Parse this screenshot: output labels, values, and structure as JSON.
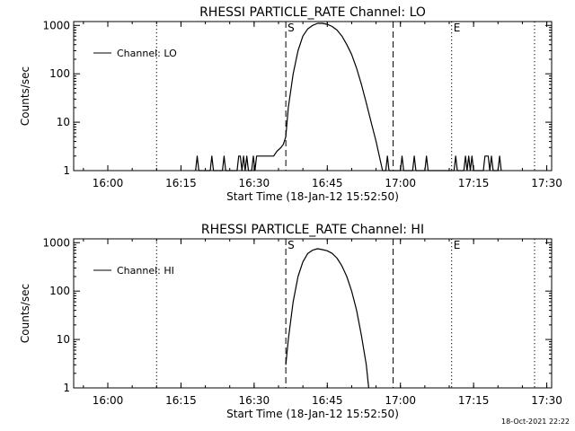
{
  "chart_data": [
    {
      "type": "line",
      "title": "RHESSI PARTICLE_RATE Channel: LO",
      "xlabel": "Start Time (18-Jan-12 15:52:50)",
      "ylabel": "Counts/sec",
      "yscale": "log",
      "ylim": [
        1,
        1200
      ],
      "xlim": [
        "15:53",
        "17:31"
      ],
      "xticks": [
        "16:00",
        "16:15",
        "16:30",
        "16:45",
        "17:00",
        "17:15",
        "17:30"
      ],
      "yticks": [
        "1",
        "10",
        "100",
        "1000"
      ],
      "legend": {
        "label": "Channel: LO",
        "position": "top-left"
      },
      "markers": [
        {
          "label": "S",
          "time": "16:36:30",
          "style": "dashed"
        },
        {
          "label": "",
          "time": "16:58:30",
          "style": "dashed"
        },
        {
          "label": "",
          "time": "16:10:00",
          "style": "dotted"
        },
        {
          "label": "E",
          "time": "17:10:30",
          "style": "dotted"
        },
        {
          "label": "",
          "time": "17:27:30",
          "style": "dotted"
        }
      ],
      "series": [
        {
          "name": "Channel: LO",
          "points": [
            [
              "16:18:00",
              1
            ],
            [
              "16:18:20",
              2
            ],
            [
              "16:18:40",
              1
            ],
            [
              "16:21:00",
              1
            ],
            [
              "16:21:20",
              2
            ],
            [
              "16:21:40",
              1
            ],
            [
              "16:23:30",
              1
            ],
            [
              "16:23:50",
              2
            ],
            [
              "16:24:10",
              1
            ],
            [
              "16:26:30",
              1
            ],
            [
              "16:26:50",
              2
            ],
            [
              "16:27:10",
              2
            ],
            [
              "16:27:30",
              1
            ],
            [
              "16:27:50",
              2
            ],
            [
              "16:28:10",
              1
            ],
            [
              "16:28:30",
              2
            ],
            [
              "16:28:50",
              1
            ],
            [
              "16:29:30",
              1
            ],
            [
              "16:29:50",
              2
            ],
            [
              "16:30:10",
              1
            ],
            [
              "16:30:30",
              2
            ],
            [
              "16:34:00",
              2
            ],
            [
              "16:34:40",
              2.5
            ],
            [
              "16:35:30",
              3
            ],
            [
              "16:36:00",
              3.5
            ],
            [
              "16:36:30",
              5
            ],
            [
              "16:37:00",
              20
            ],
            [
              "16:38:00",
              100
            ],
            [
              "16:39:00",
              300
            ],
            [
              "16:40:00",
              600
            ],
            [
              "16:41:00",
              850
            ],
            [
              "16:42:00",
              1000
            ],
            [
              "16:43:00",
              1100
            ],
            [
              "16:44:00",
              1100
            ],
            [
              "16:45:00",
              1050
            ],
            [
              "16:46:00",
              950
            ],
            [
              "16:47:00",
              800
            ],
            [
              "16:48:00",
              600
            ],
            [
              "16:49:00",
              400
            ],
            [
              "16:50:00",
              250
            ],
            [
              "16:51:00",
              130
            ],
            [
              "16:52:00",
              60
            ],
            [
              "16:53:00",
              25
            ],
            [
              "16:54:00",
              10
            ],
            [
              "16:55:00",
              4
            ],
            [
              "16:55:40",
              2
            ],
            [
              "16:56:20",
              1
            ],
            [
              "16:57:00",
              1
            ],
            [
              "16:57:20",
              2
            ],
            [
              "16:57:40",
              1
            ],
            [
              "17:00:00",
              1
            ],
            [
              "17:00:20",
              2
            ],
            [
              "17:00:40",
              1
            ],
            [
              "17:02:30",
              1
            ],
            [
              "17:02:50",
              2
            ],
            [
              "17:03:10",
              1
            ],
            [
              "17:05:00",
              1
            ],
            [
              "17:05:20",
              2
            ],
            [
              "17:05:40",
              1
            ],
            [
              "17:11:00",
              1
            ],
            [
              "17:11:20",
              2
            ],
            [
              "17:11:40",
              1
            ],
            [
              "17:13:00",
              1
            ],
            [
              "17:13:20",
              2
            ],
            [
              "17:13:40",
              1
            ],
            [
              "17:14:00",
              2
            ],
            [
              "17:14:20",
              1
            ],
            [
              "17:14:40",
              2
            ],
            [
              "17:15:00",
              1
            ],
            [
              "17:17:00",
              1
            ],
            [
              "17:17:20",
              2
            ],
            [
              "17:18:00",
              2
            ],
            [
              "17:18:20",
              1
            ],
            [
              "17:18:40",
              2
            ],
            [
              "17:19:00",
              1
            ],
            [
              "17:20:00",
              1
            ],
            [
              "17:20:20",
              2
            ],
            [
              "17:20:40",
              1
            ]
          ]
        }
      ]
    },
    {
      "type": "line",
      "title": "RHESSI PARTICLE_RATE Channel: HI",
      "xlabel": "Start Time (18-Jan-12 15:52:50)",
      "ylabel": "Counts/sec",
      "yscale": "log",
      "ylim": [
        1,
        1200
      ],
      "xlim": [
        "15:53",
        "17:31"
      ],
      "xticks": [
        "16:00",
        "16:15",
        "16:30",
        "16:45",
        "17:00",
        "17:15",
        "17:30"
      ],
      "yticks": [
        "1",
        "10",
        "100",
        "1000"
      ],
      "legend": {
        "label": "Channel: HI",
        "position": "top-left"
      },
      "markers": [
        {
          "label": "S",
          "time": "16:36:30",
          "style": "dashed"
        },
        {
          "label": "",
          "time": "16:58:30",
          "style": "dashed"
        },
        {
          "label": "",
          "time": "16:10:00",
          "style": "dotted"
        },
        {
          "label": "E",
          "time": "17:10:30",
          "style": "dotted"
        },
        {
          "label": "",
          "time": "17:27:30",
          "style": "dotted"
        }
      ],
      "series": [
        {
          "name": "Channel: HI",
          "points": [
            [
              "16:36:30",
              3
            ],
            [
              "16:37:00",
              10
            ],
            [
              "16:38:00",
              60
            ],
            [
              "16:39:00",
              200
            ],
            [
              "16:40:00",
              400
            ],
            [
              "16:41:00",
              600
            ],
            [
              "16:42:00",
              700
            ],
            [
              "16:43:00",
              750
            ],
            [
              "16:44:00",
              720
            ],
            [
              "16:45:00",
              680
            ],
            [
              "16:46:00",
              600
            ],
            [
              "16:47:00",
              480
            ],
            [
              "16:48:00",
              330
            ],
            [
              "16:49:00",
              200
            ],
            [
              "16:50:00",
              100
            ],
            [
              "16:51:00",
              40
            ],
            [
              "16:52:00",
              12
            ],
            [
              "16:53:00",
              3
            ],
            [
              "16:53:30",
              1
            ]
          ]
        }
      ]
    }
  ],
  "footer_timestamp": "18-Oct-2021 22:22"
}
